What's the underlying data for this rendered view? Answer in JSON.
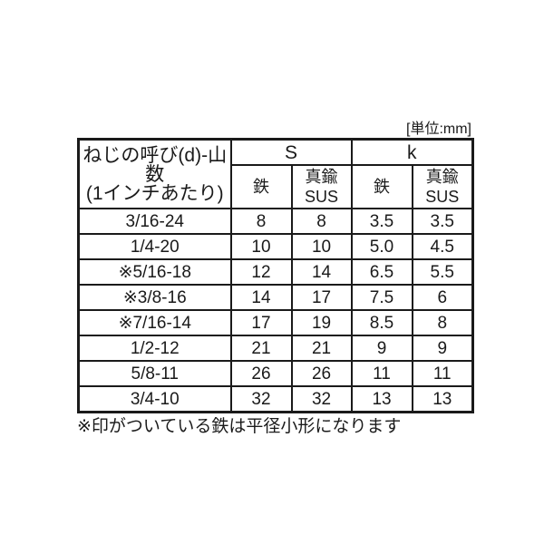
{
  "page": {
    "background_color": "#ffffff",
    "text_color": "#1a1a1a",
    "border_color": "#1a1a1a",
    "unit_label": "[単位:mm]"
  },
  "table": {
    "corner_header": "ねじの呼び(d)-山数\n(1インチあたり)",
    "groups": [
      {
        "label": "S",
        "sub_headers": [
          "鉄",
          "真鍮\nSUS"
        ]
      },
      {
        "label": "k",
        "sub_headers": [
          "鉄",
          "真鍮\nSUS"
        ]
      }
    ],
    "rows": [
      {
        "cells": [
          "3/16-24",
          "8",
          "8",
          "3.5",
          "3.5"
        ]
      },
      {
        "cells": [
          "1/4-20",
          "10",
          "10",
          "5.0",
          "4.5"
        ]
      },
      {
        "cells": [
          "※5/16-18",
          "12",
          "14",
          "6.5",
          "5.5"
        ]
      },
      {
        "cells": [
          "※3/8-16",
          "14",
          "17",
          "7.5",
          "6"
        ]
      },
      {
        "cells": [
          "※7/16-14",
          "17",
          "19",
          "8.5",
          "8"
        ]
      },
      {
        "cells": [
          "1/2-12",
          "21",
          "21",
          "9",
          "9"
        ]
      },
      {
        "cells": [
          "5/8-11",
          "26",
          "26",
          "11",
          "11"
        ]
      },
      {
        "cells": [
          "3/4-10",
          "32",
          "32",
          "13",
          "13"
        ]
      }
    ],
    "footnote": "※印がついている鉄は平径小形になります"
  }
}
